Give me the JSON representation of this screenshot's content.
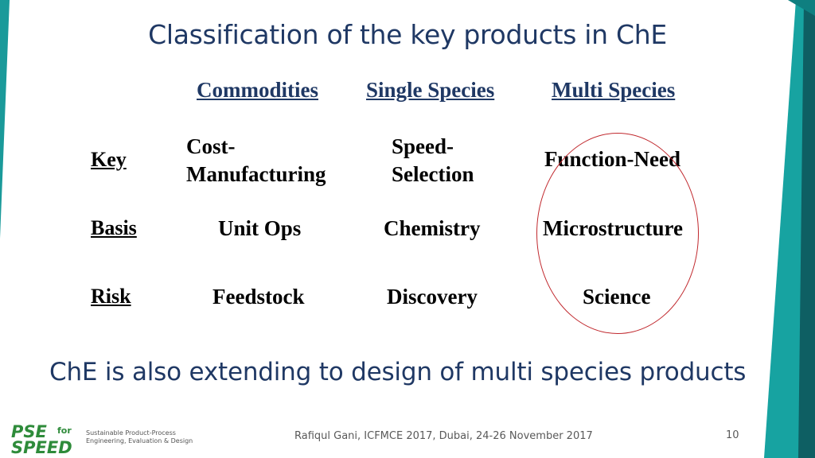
{
  "slide": {
    "title_pre": "Classification of the ",
    "title_highlight": "key products",
    "title_post": " in ChE"
  },
  "table": {
    "columns": [
      "Commodities",
      "Single Species",
      "Multi Species"
    ],
    "rows": [
      {
        "label": "Key",
        "cells": [
          [
            "Cost-",
            "Manufacturing"
          ],
          [
            "Speed-",
            "Selection"
          ],
          [
            "Function-Need"
          ]
        ]
      },
      {
        "label": "Basis",
        "cells": [
          [
            "Unit Ops"
          ],
          [
            "Chemistry"
          ],
          [
            "Microstructure"
          ]
        ]
      },
      {
        "label": "Risk",
        "cells": [
          [
            "Feedstock"
          ],
          [
            "Discovery"
          ],
          [
            "Science"
          ]
        ]
      }
    ]
  },
  "tagline": "ChE is also extending to design of multi species products",
  "footer": {
    "citation": "Rafiqul Gani, ICFMCE 2017, Dubai, 24-26 November 2017",
    "page_number": "10",
    "logo_text_top": "PSE",
    "logo_text_for": "for",
    "logo_text_bottom": "SPEED",
    "logo_sub_line1": "Sustainable Product-Process",
    "logo_sub_line2": "Engineering, Evaluation & Design"
  },
  "colors": {
    "teal": "#1a9a9a",
    "dark_teal": "#0e5f63",
    "navy": "#1f3864",
    "ellipse": "#c0282d",
    "logo_green": "#2e8b3a"
  }
}
